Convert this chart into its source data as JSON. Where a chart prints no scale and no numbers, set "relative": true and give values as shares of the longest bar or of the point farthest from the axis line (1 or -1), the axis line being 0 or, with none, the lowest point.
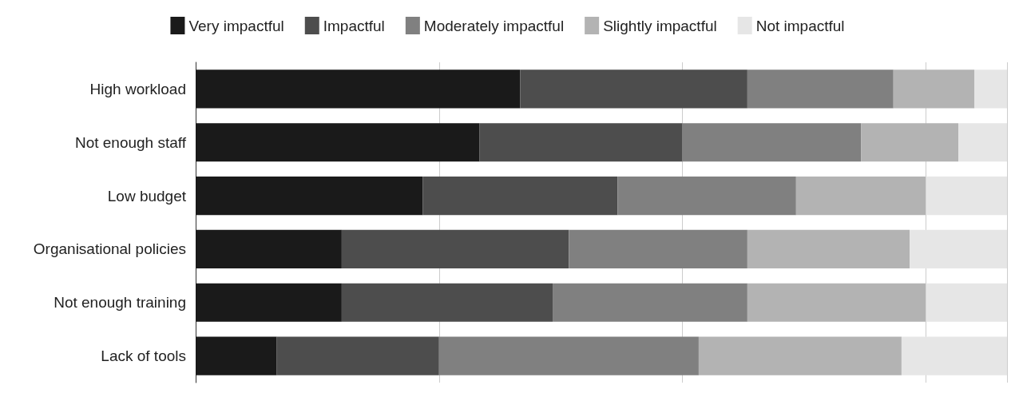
{
  "chart_data": {
    "type": "bar",
    "orientation": "horizontal",
    "stacked": true,
    "relative": true,
    "grid": "x",
    "legend": "top",
    "categories": [
      "High workload",
      "Not enough staff",
      "Low budget",
      "Organisational policies",
      "Not enough training",
      "Lack of tools"
    ],
    "series": [
      {
        "name": "Very impactful",
        "color": "#1a1a1a",
        "values": [
          0.4,
          0.35,
          0.28,
          0.18,
          0.18,
          0.1
        ]
      },
      {
        "name": "Impactful",
        "color": "#4d4d4d",
        "values": [
          0.28,
          0.25,
          0.24,
          0.28,
          0.26,
          0.2
        ]
      },
      {
        "name": "Moderately impactful",
        "color": "#808080",
        "values": [
          0.18,
          0.22,
          0.22,
          0.22,
          0.24,
          0.32
        ]
      },
      {
        "name": "Slightly impactful",
        "color": "#b3b3b3",
        "values": [
          0.1,
          0.12,
          0.16,
          0.2,
          0.22,
          0.25
        ]
      },
      {
        "name": "Not impactful",
        "color": "#e6e6e6",
        "values": [
          0.04,
          0.06,
          0.1,
          0.12,
          0.1,
          0.13
        ]
      }
    ]
  }
}
